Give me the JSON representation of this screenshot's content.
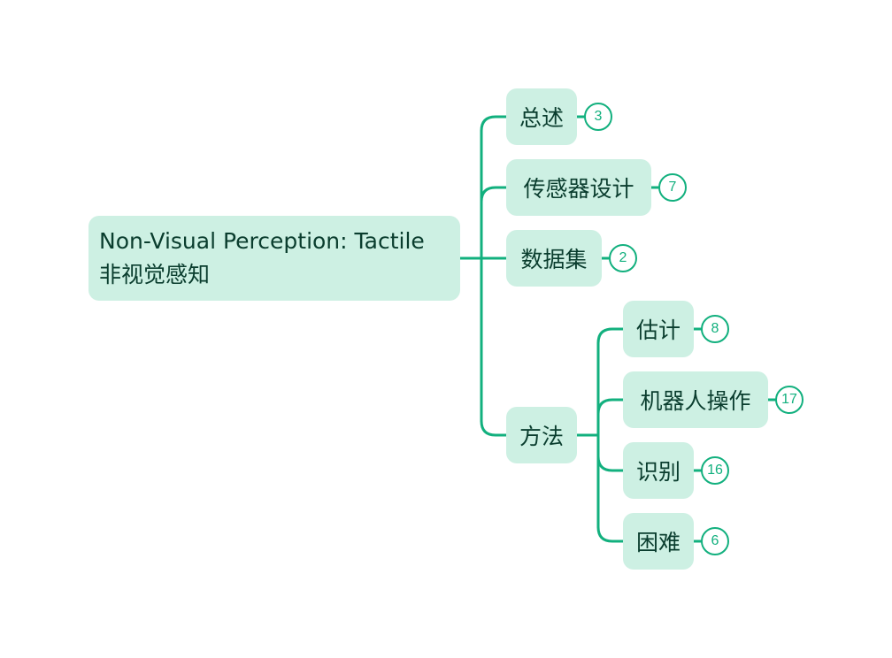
{
  "root": {
    "title": "Non-Visual Perception: Tactile",
    "subtitle": "非视觉感知"
  },
  "branches": [
    {
      "label": "总述",
      "count": "3"
    },
    {
      "label": "传感器设计",
      "count": "7"
    },
    {
      "label": "数据集",
      "count": "2"
    },
    {
      "label": "方法",
      "children": [
        {
          "label": "估计",
          "count": "8"
        },
        {
          "label": "机器人操作",
          "count": "17"
        },
        {
          "label": "识别",
          "count": "16"
        },
        {
          "label": "困难",
          "count": "6"
        }
      ]
    }
  ],
  "colors": {
    "connector": "#12b07e",
    "node_fill": "#cdf0e3",
    "text": "#0a3d2e",
    "badge": "#12b07e"
  }
}
